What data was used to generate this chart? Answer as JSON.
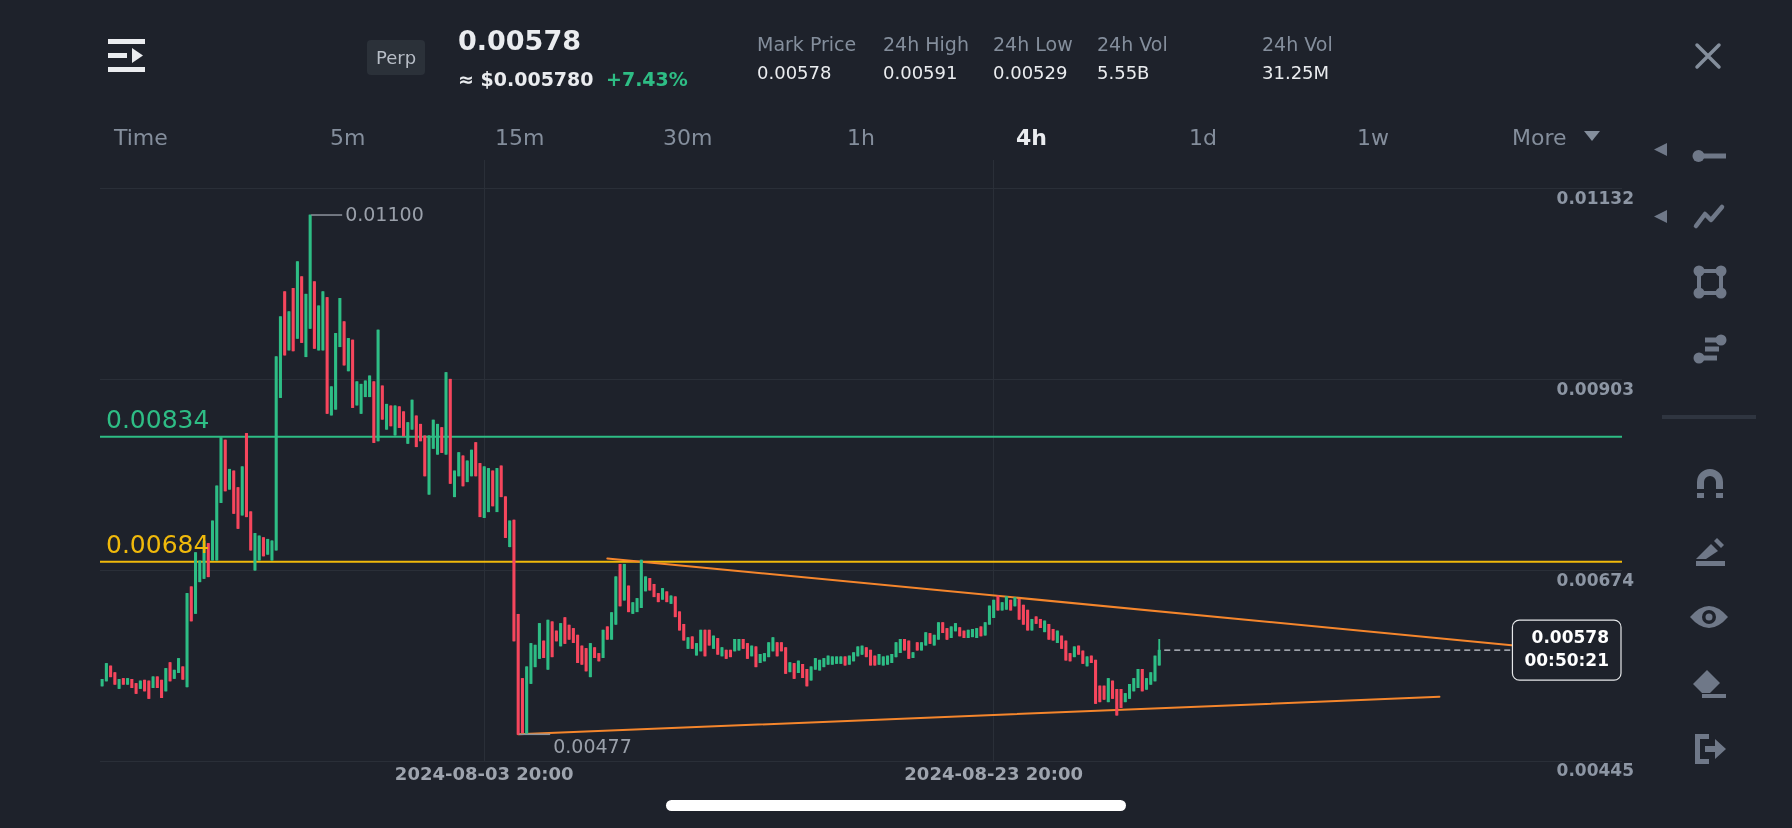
{
  "chart_data": {
    "type": "candlestick",
    "title": "0.00578",
    "subtitle": "≈ $0.005780",
    "x": [
      "2024-07-19T20:00",
      "2024-07-20T00:00",
      "2024-07-20T04:00",
      "2024-07-20T08:00",
      "2024-07-20T12:00",
      "2024-07-20T16:00",
      "2024-07-20T20:00",
      "2024-07-21T00:00",
      "2024-07-21T04:00",
      "2024-07-21T08:00",
      "2024-07-21T12:00",
      "2024-07-21T16:00",
      "2024-07-21T20:00",
      "2024-07-22T00:00",
      "2024-07-22T04:00",
      "2024-07-22T08:00",
      "2024-07-22T12:00",
      "2024-07-22T16:00",
      "2024-07-22T20:00",
      "2024-07-23T00:00",
      "2024-07-23T04:00",
      "2024-07-23T08:00",
      "2024-07-23T12:00",
      "2024-07-23T16:00",
      "2024-07-23T20:00",
      "2024-07-24T00:00",
      "2024-07-24T04:00",
      "2024-07-24T08:00",
      "2024-07-24T12:00",
      "2024-07-24T16:00",
      "2024-07-24T20:00",
      "2024-07-25T00:00",
      "2024-07-25T04:00",
      "2024-07-25T08:00",
      "2024-07-25T12:00",
      "2024-07-25T16:00",
      "2024-07-25T20:00",
      "2024-07-26T00:00",
      "2024-07-26T04:00",
      "2024-07-26T08:00",
      "2024-07-26T12:00",
      "2024-07-26T16:00",
      "2024-07-26T20:00",
      "2024-07-27T00:00",
      "2024-07-27T04:00",
      "2024-07-27T08:00",
      "2024-07-27T12:00",
      "2024-07-27T16:00",
      "2024-07-27T20:00",
      "2024-07-28T00:00",
      "2024-07-28T04:00",
      "2024-07-28T08:00",
      "2024-07-28T12:00",
      "2024-07-28T16:00",
      "2024-07-28T20:00",
      "2024-07-29T00:00",
      "2024-07-29T04:00",
      "2024-07-29T08:00",
      "2024-07-29T12:00",
      "2024-07-29T16:00",
      "2024-07-29T20:00",
      "2024-07-30T00:00",
      "2024-07-30T04:00",
      "2024-07-30T08:00",
      "2024-07-30T12:00",
      "2024-07-30T16:00",
      "2024-07-30T20:00",
      "2024-07-31T00:00",
      "2024-07-31T04:00",
      "2024-07-31T08:00",
      "2024-07-31T12:00",
      "2024-07-31T16:00",
      "2024-07-31T20:00",
      "2024-08-01T00:00",
      "2024-08-01T04:00",
      "2024-08-01T08:00",
      "2024-08-01T12:00",
      "2024-08-01T16:00",
      "2024-08-01T20:00",
      "2024-08-02T00:00",
      "2024-08-02T04:00",
      "2024-08-02T08:00",
      "2024-08-02T12:00",
      "2024-08-02T16:00",
      "2024-08-02T20:00",
      "2024-08-03T00:00",
      "2024-08-03T04:00",
      "2024-08-03T08:00",
      "2024-08-03T12:00",
      "2024-08-03T16:00",
      "2024-08-03T20:00",
      "2024-08-04T00:00",
      "2024-08-04T04:00",
      "2024-08-04T08:00",
      "2024-08-04T12:00",
      "2024-08-04T16:00",
      "2024-08-04T20:00",
      "2024-08-05T00:00",
      "2024-08-05T04:00",
      "2024-08-05T08:00",
      "2024-08-05T12:00",
      "2024-08-05T16:00",
      "2024-08-05T20:00",
      "2024-08-06T00:00",
      "2024-08-06T04:00",
      "2024-08-06T08:00",
      "2024-08-06T12:00",
      "2024-08-06T16:00",
      "2024-08-06T20:00",
      "2024-08-07T00:00",
      "2024-08-07T04:00",
      "2024-08-07T08:00",
      "2024-08-07T12:00",
      "2024-08-07T16:00",
      "2024-08-07T20:00",
      "2024-08-08T00:00",
      "2024-08-08T04:00",
      "2024-08-08T08:00",
      "2024-08-08T12:00",
      "2024-08-08T16:00",
      "2024-08-08T20:00",
      "2024-08-09T00:00",
      "2024-08-09T04:00",
      "2024-08-09T08:00",
      "2024-08-09T12:00",
      "2024-08-09T16:00",
      "2024-08-09T20:00",
      "2024-08-10T00:00",
      "2024-08-10T04:00",
      "2024-08-10T08:00",
      "2024-08-10T12:00",
      "2024-08-10T16:00",
      "2024-08-10T20:00",
      "2024-08-11T00:00",
      "2024-08-11T04:00",
      "2024-08-11T08:00",
      "2024-08-11T12:00",
      "2024-08-11T16:00",
      "2024-08-11T20:00",
      "2024-08-12T00:00",
      "2024-08-12T04:00",
      "2024-08-12T08:00",
      "2024-08-12T12:00",
      "2024-08-12T16:00",
      "2024-08-12T20:00",
      "2024-08-13T00:00",
      "2024-08-13T04:00",
      "2024-08-13T08:00",
      "2024-08-13T12:00",
      "2024-08-13T16:00",
      "2024-08-13T20:00",
      "2024-08-14T00:00",
      "2024-08-14T04:00",
      "2024-08-14T08:00",
      "2024-08-14T12:00",
      "2024-08-14T16:00",
      "2024-08-14T20:00",
      "2024-08-15T00:00",
      "2024-08-15T04:00",
      "2024-08-15T08:00",
      "2024-08-15T12:00",
      "2024-08-15T16:00",
      "2024-08-15T20:00",
      "2024-08-16T00:00",
      "2024-08-16T04:00",
      "2024-08-16T08:00",
      "2024-08-16T12:00",
      "2024-08-16T16:00",
      "2024-08-16T20:00",
      "2024-08-17T00:00",
      "2024-08-17T04:00",
      "2024-08-17T08:00",
      "2024-08-17T12:00",
      "2024-08-17T16:00",
      "2024-08-17T20:00",
      "2024-08-18T00:00",
      "2024-08-18T04:00",
      "2024-08-18T08:00",
      "2024-08-18T12:00",
      "2024-08-18T16:00",
      "2024-08-18T20:00",
      "2024-08-19T00:00",
      "2024-08-19T04:00",
      "2024-08-19T08:00",
      "2024-08-19T12:00",
      "2024-08-19T16:00",
      "2024-08-19T20:00",
      "2024-08-20T00:00",
      "2024-08-20T04:00",
      "2024-08-20T08:00",
      "2024-08-20T12:00",
      "2024-08-20T16:00",
      "2024-08-20T20:00",
      "2024-08-21T00:00",
      "2024-08-21T04:00",
      "2024-08-21T08:00",
      "2024-08-21T12:00",
      "2024-08-21T16:00",
      "2024-08-21T20:00",
      "2024-08-22T00:00",
      "2024-08-22T04:00",
      "2024-08-22T08:00",
      "2024-08-22T12:00",
      "2024-08-22T16:00",
      "2024-08-22T20:00",
      "2024-08-23T00:00",
      "2024-08-23T04:00",
      "2024-08-23T08:00",
      "2024-08-23T12:00",
      "2024-08-23T16:00",
      "2024-08-23T20:00",
      "2024-08-24T00:00",
      "2024-08-24T04:00",
      "2024-08-24T08:00",
      "2024-08-24T12:00",
      "2024-08-24T16:00",
      "2024-08-24T20:00",
      "2024-08-25T00:00",
      "2024-08-25T04:00",
      "2024-08-25T08:00",
      "2024-08-25T12:00",
      "2024-08-25T16:00",
      "2024-08-25T20:00",
      "2024-08-26T00:00",
      "2024-08-26T04:00",
      "2024-08-26T08:00",
      "2024-08-26T12:00",
      "2024-08-26T16:00",
      "2024-08-26T20:00",
      "2024-08-27T00:00",
      "2024-08-27T04:00",
      "2024-08-27T08:00",
      "2024-08-27T12:00",
      "2024-08-27T16:00",
      "2024-08-27T20:00",
      "2024-08-28T00:00",
      "2024-08-28T04:00",
      "2024-08-28T08:00",
      "2024-08-28T12:00",
      "2024-08-28T16:00",
      "2024-08-28T20:00",
      "2024-08-29T00:00",
      "2024-08-29T04:00",
      "2024-08-29T08:00",
      "2024-08-29T12:00",
      "2024-08-29T16:00",
      "2024-08-29T20:00",
      "2024-08-30T00:00",
      "2024-08-30T04:00",
      "2024-08-30T08:00"
    ],
    "ohlc": [
      [
        0.00535,
        0.00543,
        0.00535,
        0.00543
      ],
      [
        0.00541,
        0.00562,
        0.00541,
        0.00562
      ],
      [
        0.00559,
        0.00559,
        0.00546,
        0.00546
      ],
      [
        0.00551,
        0.00551,
        0.00537,
        0.00537
      ],
      [
        0.00532,
        0.00543,
        0.00532,
        0.00543
      ],
      [
        0.00544,
        0.00544,
        0.00537,
        0.00537
      ],
      [
        0.00537,
        0.00544,
        0.00537,
        0.00544
      ],
      [
        0.00543,
        0.00543,
        0.00533,
        0.00533
      ],
      [
        0.00538,
        0.00538,
        0.00526,
        0.00526
      ],
      [
        0.00532,
        0.00541,
        0.00532,
        0.00541
      ],
      [
        0.00542,
        0.00542,
        0.00529,
        0.00529
      ],
      [
        0.00541,
        0.00541,
        0.0052,
        0.0052
      ],
      [
        0.00533,
        0.00546,
        0.00533,
        0.00546
      ],
      [
        0.00546,
        0.00546,
        0.00533,
        0.00533
      ],
      [
        0.00542,
        0.00542,
        0.00521,
        0.00521
      ],
      [
        0.00529,
        0.00556,
        0.00529,
        0.00556
      ],
      [
        0.00563,
        0.00563,
        0.00541,
        0.00541
      ],
      [
        0.00544,
        0.00554,
        0.00544,
        0.00554
      ],
      [
        0.00551,
        0.00568,
        0.00551,
        0.00568
      ],
      [
        0.00558,
        0.00558,
        0.00543,
        0.00543
      ],
      [
        0.00534,
        0.00646,
        0.00534,
        0.00646
      ],
      [
        0.00654,
        0.00654,
        0.00613,
        0.00613
      ],
      [
        0.00622,
        0.00695,
        0.00622,
        0.00695
      ],
      [
        0.0066,
        0.00685,
        0.0066,
        0.00685
      ],
      [
        0.00664,
        0.00709,
        0.00664,
        0.00709
      ],
      [
        0.00706,
        0.00706,
        0.00666,
        0.00666
      ],
      [
        0.00686,
        0.00733,
        0.00686,
        0.00733
      ],
      [
        0.00686,
        0.00775,
        0.00686,
        0.00775
      ],
      [
        0.00755,
        0.00833,
        0.00755,
        0.00833
      ],
      [
        0.0083,
        0.0083,
        0.00769,
        0.00769
      ],
      [
        0.00771,
        0.00795,
        0.00771,
        0.00795
      ],
      [
        0.00793,
        0.00793,
        0.00742,
        0.00742
      ],
      [
        0.00773,
        0.00773,
        0.00724,
        0.00724
      ],
      [
        0.0074,
        0.00798,
        0.0074,
        0.00798
      ],
      [
        0.00838,
        0.00838,
        0.00738,
        0.00738
      ],
      [
        0.00744,
        0.00744,
        0.00698,
        0.00698
      ],
      [
        0.00674,
        0.00718,
        0.00674,
        0.00718
      ],
      [
        0.00686,
        0.00715,
        0.00686,
        0.00715
      ],
      [
        0.00713,
        0.00713,
        0.00691,
        0.00691
      ],
      [
        0.00693,
        0.00711,
        0.00693,
        0.00711
      ],
      [
        0.00686,
        0.00709,
        0.00686,
        0.00709
      ],
      [
        0.00698,
        0.0093,
        0.00698,
        0.0093
      ],
      [
        0.00881,
        0.00978,
        0.00881,
        0.00978
      ],
      [
        0.01008,
        0.01008,
        0.00932,
        0.00932
      ],
      [
        0.00938,
        0.00984,
        0.00938,
        0.00984
      ],
      [
        0.01012,
        0.01012,
        0.00937,
        0.00937
      ],
      [
        0.00952,
        0.01044,
        0.00952,
        0.01044
      ],
      [
        0.01026,
        0.01026,
        0.00947,
        0.00947
      ],
      [
        0.0093,
        0.01005,
        0.0093,
        0.01005
      ],
      [
        0.00964,
        0.011,
        0.00964,
        0.011
      ],
      [
        0.0102,
        0.0102,
        0.0094,
        0.0094
      ],
      [
        0.00938,
        0.00991,
        0.00938,
        0.00991
      ],
      [
        0.00938,
        0.01008,
        0.00938,
        0.01008
      ],
      [
        0.01001,
        0.01001,
        0.00862,
        0.00862
      ],
      [
        0.0086,
        0.00894,
        0.0086,
        0.00894
      ],
      [
        0.00867,
        0.00958,
        0.00867,
        0.00958
      ],
      [
        0.00942,
        0.01,
        0.00942,
        0.01
      ],
      [
        0.00972,
        0.00972,
        0.0092,
        0.0092
      ],
      [
        0.00913,
        0.00952,
        0.00913,
        0.00952
      ],
      [
        0.0095,
        0.0095,
        0.00869,
        0.00869
      ],
      [
        0.00872,
        0.009,
        0.00872,
        0.009
      ],
      [
        0.00862,
        0.00897,
        0.00862,
        0.00897
      ],
      [
        0.00882,
        0.00901,
        0.00882,
        0.00901
      ],
      [
        0.00882,
        0.00907,
        0.00882,
        0.00907
      ],
      [
        0.009,
        0.009,
        0.00827,
        0.00827
      ],
      [
        0.00829,
        0.00962,
        0.00829,
        0.00962
      ],
      [
        0.00895,
        0.00895,
        0.00855,
        0.00855
      ],
      [
        0.00843,
        0.00873,
        0.00843,
        0.00873
      ],
      [
        0.00871,
        0.00871,
        0.00847,
        0.00847
      ],
      [
        0.00836,
        0.00871,
        0.00836,
        0.00871
      ],
      [
        0.0087,
        0.0087,
        0.00845,
        0.00845
      ],
      [
        0.00864,
        0.00864,
        0.00835,
        0.00835
      ],
      [
        0.00826,
        0.00851,
        0.00826,
        0.00851
      ],
      [
        0.00843,
        0.00878,
        0.00843,
        0.00878
      ],
      [
        0.00859,
        0.00859,
        0.00822,
        0.00822
      ],
      [
        0.00849,
        0.00849,
        0.00829,
        0.00829
      ],
      [
        0.00835,
        0.00835,
        0.00787,
        0.00787
      ],
      [
        0.00765,
        0.00835,
        0.00765,
        0.00835
      ],
      [
        0.0082,
        0.00854,
        0.0082,
        0.00854
      ],
      [
        0.00813,
        0.00849,
        0.00813,
        0.00849
      ],
      [
        0.00845,
        0.00845,
        0.00815,
        0.00815
      ],
      [
        0.00813,
        0.00911,
        0.00813,
        0.00911
      ],
      [
        0.00903,
        0.00903,
        0.00778,
        0.00778
      ],
      [
        0.00762,
        0.00793,
        0.00762,
        0.00793
      ],
      [
        0.00787,
        0.00815,
        0.00787,
        0.00815
      ],
      [
        0.00811,
        0.00811,
        0.00775,
        0.00775
      ],
      [
        0.0078,
        0.00805,
        0.0078,
        0.00805
      ],
      [
        0.00787,
        0.00818,
        0.00787,
        0.00818
      ],
      [
        0.00827,
        0.00827,
        0.00787,
        0.00787
      ],
      [
        0.00802,
        0.00802,
        0.00738,
        0.00738
      ],
      [
        0.00737,
        0.00798,
        0.00737,
        0.00798
      ],
      [
        0.00744,
        0.00796,
        0.00744,
        0.00796
      ],
      [
        0.00793,
        0.00793,
        0.00751,
        0.00751
      ],
      [
        0.00744,
        0.00796,
        0.00744,
        0.00796
      ],
      [
        0.00799,
        0.00799,
        0.00762,
        0.00762
      ],
      [
        0.00762,
        0.00762,
        0.00713,
        0.00713
      ],
      [
        0.00702,
        0.00733,
        0.00702,
        0.00733
      ],
      [
        0.00734,
        0.00734,
        0.00589,
        0.00589
      ],
      [
        0.00621,
        0.00621,
        0.00477,
        0.00477
      ],
      [
        0.00544,
        0.00544,
        0.00479,
        0.00479
      ],
      [
        0.00478,
        0.00558,
        0.00478,
        0.00558
      ],
      [
        0.00538,
        0.00586,
        0.00538,
        0.00586
      ],
      [
        0.00558,
        0.00584,
        0.00558,
        0.00584
      ],
      [
        0.00568,
        0.0061,
        0.00568,
        0.0061
      ],
      [
        0.00589,
        0.00589,
        0.00569,
        0.00569
      ],
      [
        0.00555,
        0.00614,
        0.00555,
        0.00614
      ],
      [
        0.00612,
        0.00612,
        0.0057,
        0.0057
      ],
      [
        0.00601,
        0.00601,
        0.00589,
        0.00589
      ],
      [
        0.00583,
        0.0061,
        0.00583,
        0.0061
      ],
      [
        0.00617,
        0.00617,
        0.00586,
        0.00586
      ],
      [
        0.00608,
        0.00608,
        0.00591,
        0.00591
      ],
      [
        0.00604,
        0.00604,
        0.00587,
        0.00587
      ],
      [
        0.00596,
        0.00596,
        0.00563,
        0.00563
      ],
      [
        0.00583,
        0.00583,
        0.00561,
        0.00561
      ],
      [
        0.0058,
        0.0058,
        0.00553,
        0.00553
      ],
      [
        0.00546,
        0.00586,
        0.00546,
        0.00586
      ],
      [
        0.00581,
        0.00581,
        0.00569,
        0.00569
      ],
      [
        0.00574,
        0.00574,
        0.00565,
        0.00565
      ],
      [
        0.00569,
        0.00602,
        0.00569,
        0.00602
      ],
      [
        0.00606,
        0.00606,
        0.00591,
        0.00591
      ],
      [
        0.00591,
        0.00623,
        0.00591,
        0.00623
      ],
      [
        0.00609,
        0.00666,
        0.00609,
        0.00666
      ],
      [
        0.00681,
        0.00681,
        0.00631,
        0.00631
      ],
      [
        0.00638,
        0.00681,
        0.00638,
        0.00681
      ],
      [
        0.00655,
        0.00655,
        0.00624,
        0.00624
      ],
      [
        0.00622,
        0.00635,
        0.00622,
        0.00635
      ],
      [
        0.00624,
        0.0064,
        0.00624,
        0.0064
      ],
      [
        0.00629,
        0.00686,
        0.00629,
        0.00686
      ],
      [
        0.00649,
        0.00666,
        0.00649,
        0.00666
      ],
      [
        0.00664,
        0.00664,
        0.0065,
        0.0065
      ],
      [
        0.00657,
        0.00657,
        0.00642,
        0.00642
      ],
      [
        0.00646,
        0.00646,
        0.00636,
        0.00636
      ],
      [
        0.00639,
        0.00652,
        0.00639,
        0.00652
      ],
      [
        0.00648,
        0.00648,
        0.00636,
        0.00636
      ],
      [
        0.00634,
        0.00643,
        0.00634,
        0.00643
      ],
      [
        0.00642,
        0.00642,
        0.00618,
        0.00618
      ],
      [
        0.00624,
        0.00624,
        0.00602,
        0.00602
      ],
      [
        0.00609,
        0.00609,
        0.0059,
        0.0059
      ],
      [
        0.0058,
        0.00593,
        0.0058,
        0.00593
      ],
      [
        0.00594,
        0.00594,
        0.0058,
        0.0058
      ],
      [
        0.00572,
        0.00586,
        0.00572,
        0.00586
      ],
      [
        0.00577,
        0.00602,
        0.00577,
        0.00602
      ],
      [
        0.00602,
        0.00602,
        0.00571,
        0.00571
      ],
      [
        0.00602,
        0.00602,
        0.00584,
        0.00584
      ],
      [
        0.0058,
        0.00595,
        0.0058,
        0.00595
      ],
      [
        0.00592,
        0.00592,
        0.00573,
        0.00573
      ],
      [
        0.00571,
        0.00581,
        0.00571,
        0.00581
      ],
      [
        0.00578,
        0.00578,
        0.00568,
        0.00568
      ],
      [
        0.00578,
        0.00578,
        0.0057,
        0.0057
      ],
      [
        0.00577,
        0.00591,
        0.00577,
        0.00591
      ],
      [
        0.00578,
        0.00591,
        0.00578,
        0.00591
      ],
      [
        0.00591,
        0.00591,
        0.0058,
        0.0058
      ],
      [
        0.00586,
        0.00586,
        0.00568,
        0.00568
      ],
      [
        0.00571,
        0.00583,
        0.00571,
        0.00583
      ],
      [
        0.00582,
        0.00582,
        0.00558,
        0.00558
      ],
      [
        0.00563,
        0.00573,
        0.00563,
        0.00573
      ],
      [
        0.00565,
        0.00574,
        0.00565,
        0.00574
      ],
      [
        0.0057,
        0.00587,
        0.0057,
        0.00587
      ],
      [
        0.00577,
        0.00593,
        0.00577,
        0.00593
      ],
      [
        0.00587,
        0.00587,
        0.00571,
        0.00571
      ],
      [
        0.00587,
        0.00587,
        0.00577,
        0.00577
      ],
      [
        0.00581,
        0.00581,
        0.0055,
        0.0055
      ],
      [
        0.00552,
        0.00563,
        0.00552,
        0.00563
      ],
      [
        0.00562,
        0.00562,
        0.00544,
        0.00544
      ],
      [
        0.00551,
        0.00565,
        0.00551,
        0.00565
      ],
      [
        0.00561,
        0.00561,
        0.00545,
        0.00545
      ],
      [
        0.00555,
        0.00555,
        0.00535,
        0.00535
      ],
      [
        0.00542,
        0.00558,
        0.00542,
        0.00558
      ],
      [
        0.00555,
        0.00568,
        0.00555,
        0.00568
      ],
      [
        0.00554,
        0.00566,
        0.00554,
        0.00566
      ],
      [
        0.00558,
        0.00568,
        0.00558,
        0.00568
      ],
      [
        0.00561,
        0.00571,
        0.00561,
        0.00571
      ],
      [
        0.00561,
        0.0057,
        0.00561,
        0.0057
      ],
      [
        0.00562,
        0.0057,
        0.00562,
        0.0057
      ],
      [
        0.00562,
        0.0057,
        0.00562,
        0.0057
      ],
      [
        0.0057,
        0.0057,
        0.0056,
        0.0056
      ],
      [
        0.00561,
        0.00571,
        0.00561,
        0.00571
      ],
      [
        0.00565,
        0.00575,
        0.00565,
        0.00575
      ],
      [
        0.00571,
        0.00582,
        0.00571,
        0.00582
      ],
      [
        0.00573,
        0.00583,
        0.00573,
        0.00583
      ],
      [
        0.00581,
        0.00581,
        0.0057,
        0.0057
      ],
      [
        0.00578,
        0.00578,
        0.0056,
        0.0056
      ],
      [
        0.00571,
        0.00571,
        0.0056,
        0.0056
      ],
      [
        0.00561,
        0.00573,
        0.00561,
        0.00573
      ],
      [
        0.0056,
        0.0057,
        0.0056,
        0.0057
      ],
      [
        0.00561,
        0.00571,
        0.00561,
        0.00571
      ],
      [
        0.00563,
        0.00573,
        0.00563,
        0.00573
      ],
      [
        0.0057,
        0.00587,
        0.0057,
        0.00587
      ],
      [
        0.00575,
        0.00591,
        0.00575,
        0.00591
      ],
      [
        0.00591,
        0.00591,
        0.00578,
        0.00578
      ],
      [
        0.00589,
        0.00589,
        0.00568,
        0.00568
      ],
      [
        0.00569,
        0.00575,
        0.00569,
        0.00575
      ],
      [
        0.00587,
        0.00587,
        0.00578,
        0.00578
      ],
      [
        0.00578,
        0.00587,
        0.00578,
        0.00587
      ],
      [
        0.00584,
        0.00599,
        0.00584,
        0.00599
      ],
      [
        0.00598,
        0.00598,
        0.00586,
        0.00586
      ],
      [
        0.00584,
        0.00596,
        0.00584,
        0.00596
      ],
      [
        0.00591,
        0.00611,
        0.00591,
        0.00611
      ],
      [
        0.00611,
        0.00611,
        0.00599,
        0.00599
      ],
      [
        0.00604,
        0.00604,
        0.00591,
        0.00591
      ],
      [
        0.00593,
        0.00606,
        0.00593,
        0.00606
      ],
      [
        0.00601,
        0.0061,
        0.00601,
        0.0061
      ],
      [
        0.00605,
        0.00605,
        0.00595,
        0.00595
      ],
      [
        0.00601,
        0.00601,
        0.00593,
        0.00593
      ],
      [
        0.00593,
        0.00602,
        0.00593,
        0.00602
      ],
      [
        0.00594,
        0.00603,
        0.00594,
        0.00603
      ],
      [
        0.00593,
        0.00604,
        0.00593,
        0.00604
      ],
      [
        0.00606,
        0.00606,
        0.00595,
        0.00595
      ],
      [
        0.00596,
        0.00611,
        0.00596,
        0.00611
      ],
      [
        0.00609,
        0.00631,
        0.00609,
        0.00631
      ],
      [
        0.00617,
        0.00638,
        0.00617,
        0.00638
      ],
      [
        0.00643,
        0.00643,
        0.00626,
        0.00626
      ],
      [
        0.00626,
        0.00635,
        0.00626,
        0.00635
      ],
      [
        0.00627,
        0.00642,
        0.00627,
        0.00642
      ],
      [
        0.00638,
        0.00638,
        0.00626,
        0.00626
      ],
      [
        0.00631,
        0.00641,
        0.00631,
        0.00641
      ],
      [
        0.00639,
        0.00639,
        0.00615,
        0.00615
      ],
      [
        0.00632,
        0.00632,
        0.00609,
        0.00609
      ],
      [
        0.00626,
        0.00626,
        0.00602,
        0.00602
      ],
      [
        0.00602,
        0.00615,
        0.00602,
        0.00615
      ],
      [
        0.00618,
        0.00618,
        0.0061,
        0.0061
      ],
      [
        0.00615,
        0.00615,
        0.00605,
        0.00605
      ],
      [
        0.006,
        0.00613,
        0.006,
        0.00613
      ],
      [
        0.00609,
        0.00609,
        0.00591,
        0.00591
      ],
      [
        0.00603,
        0.00603,
        0.0059,
        0.0059
      ],
      [
        0.00587,
        0.00601,
        0.00587,
        0.00601
      ],
      [
        0.00595,
        0.00595,
        0.0058,
        0.0058
      ],
      [
        0.00589,
        0.00589,
        0.00566,
        0.00566
      ],
      [
        0.00574,
        0.00574,
        0.00565,
        0.00565
      ],
      [
        0.0057,
        0.00582,
        0.0057,
        0.00582
      ],
      [
        0.00583,
        0.00583,
        0.00573,
        0.00573
      ],
      [
        0.00577,
        0.00577,
        0.00562,
        0.00562
      ],
      [
        0.00559,
        0.0057,
        0.00559,
        0.0057
      ],
      [
        0.00571,
        0.00571,
        0.00563,
        0.00563
      ],
      [
        0.00566,
        0.00566,
        0.00514,
        0.00514
      ],
      [
        0.00535,
        0.00535,
        0.00516,
        0.00516
      ],
      [
        0.00535,
        0.00535,
        0.00519,
        0.00519
      ],
      [
        0.00516,
        0.00544,
        0.00516,
        0.00544
      ],
      [
        0.00541,
        0.00541,
        0.0052,
        0.0052
      ],
      [
        0.00531,
        0.00531,
        0.005,
        0.005
      ],
      [
        0.00531,
        0.00531,
        0.00509,
        0.00509
      ],
      [
        0.00516,
        0.00526,
        0.00516,
        0.00526
      ],
      [
        0.0052,
        0.00537,
        0.0052,
        0.00537
      ],
      [
        0.00529,
        0.00544,
        0.00529,
        0.00544
      ],
      [
        0.00533,
        0.00555,
        0.00533,
        0.00555
      ],
      [
        0.00555,
        0.00555,
        0.00529,
        0.00529
      ],
      [
        0.00531,
        0.00544,
        0.00531,
        0.00544
      ],
      [
        0.00537,
        0.00551,
        0.00537,
        0.00551
      ],
      [
        0.00541,
        0.00571,
        0.00541,
        0.00571
      ],
      [
        0.0056,
        0.00591,
        0.0056,
        0.00578
      ]
    ],
    "colors": [
      "#2ebd85",
      "#2ebd85",
      "#f6465d",
      "#f6465d",
      "#2ebd85",
      "#f6465d",
      "#2ebd85",
      "#f6465d",
      "#f6465d",
      "#2ebd85",
      "#f6465d",
      "#f6465d",
      "#2ebd85",
      "#f6465d",
      "#f6465d",
      "#2ebd85",
      "#f6465d",
      "#2ebd85",
      "#2ebd85",
      "#f6465d",
      "#2ebd85",
      "#f6465d",
      "#2ebd85",
      "#2ebd85",
      "#2ebd85",
      "#f6465d",
      "#2ebd85",
      "#2ebd85",
      "#2ebd85",
      "#f6465d",
      "#2ebd85",
      "#f6465d",
      "#f6465d",
      "#2ebd85",
      "#f6465d",
      "#f6465d",
      "#2ebd85",
      "#2ebd85",
      "#f6465d",
      "#2ebd85",
      "#2ebd85",
      "#2ebd85",
      "#2ebd85",
      "#f6465d",
      "#2ebd85",
      "#f6465d",
      "#2ebd85",
      "#f6465d",
      "#2ebd85",
      "#2ebd85",
      "#f6465d",
      "#2ebd85",
      "#2ebd85",
      "#f6465d",
      "#2ebd85",
      "#2ebd85",
      "#2ebd85",
      "#f6465d",
      "#2ebd85",
      "#f6465d",
      "#2ebd85",
      "#2ebd85",
      "#2ebd85",
      "#2ebd85",
      "#f6465d",
      "#2ebd85",
      "#f6465d",
      "#2ebd85",
      "#f6465d",
      "#2ebd85",
      "#f6465d",
      "#f6465d",
      "#2ebd85",
      "#2ebd85",
      "#f6465d",
      "#f6465d",
      "#f6465d",
      "#2ebd85",
      "#2ebd85",
      "#2ebd85",
      "#f6465d",
      "#2ebd85",
      "#f6465d",
      "#2ebd85",
      "#2ebd85",
      "#f6465d",
      "#2ebd85",
      "#2ebd85",
      "#f6465d",
      "#f6465d",
      "#2ebd85",
      "#2ebd85",
      "#f6465d",
      "#2ebd85",
      "#f6465d",
      "#f6465d",
      "#2ebd85",
      "#f6465d",
      "#f6465d",
      "#f6465d",
      "#2ebd85",
      "#2ebd85",
      "#2ebd85",
      "#2ebd85",
      "#f6465d",
      "#2ebd85",
      "#f6465d",
      "#f6465d",
      "#2ebd85",
      "#f6465d",
      "#f6465d",
      "#f6465d",
      "#f6465d",
      "#f6465d",
      "#f6465d",
      "#2ebd85",
      "#f6465d",
      "#f6465d",
      "#2ebd85",
      "#f6465d",
      "#2ebd85",
      "#2ebd85",
      "#f6465d",
      "#2ebd85",
      "#f6465d",
      "#2ebd85",
      "#2ebd85",
      "#2ebd85",
      "#2ebd85",
      "#f6465d",
      "#f6465d",
      "#f6465d",
      "#2ebd85",
      "#f6465d",
      "#2ebd85",
      "#f6465d",
      "#f6465d",
      "#f6465d",
      "#2ebd85",
      "#f6465d",
      "#2ebd85",
      "#2ebd85",
      "#f6465d",
      "#f6465d",
      "#2ebd85",
      "#f6465d",
      "#2ebd85",
      "#f6465d",
      "#f6465d",
      "#2ebd85",
      "#2ebd85",
      "#f6465d",
      "#f6465d",
      "#2ebd85",
      "#f6465d",
      "#2ebd85",
      "#2ebd85",
      "#2ebd85",
      "#2ebd85",
      "#f6465d",
      "#f6465d",
      "#f6465d",
      "#2ebd85",
      "#f6465d",
      "#2ebd85",
      "#f6465d",
      "#f6465d",
      "#2ebd85",
      "#2ebd85",
      "#2ebd85",
      "#2ebd85",
      "#2ebd85",
      "#2ebd85",
      "#2ebd85",
      "#2ebd85",
      "#f6465d",
      "#2ebd85",
      "#2ebd85",
      "#2ebd85",
      "#2ebd85",
      "#f6465d",
      "#f6465d",
      "#f6465d",
      "#2ebd85",
      "#2ebd85",
      "#2ebd85",
      "#2ebd85",
      "#2ebd85",
      "#2ebd85",
      "#f6465d",
      "#f6465d",
      "#2ebd85",
      "#f6465d",
      "#2ebd85",
      "#2ebd85",
      "#f6465d",
      "#2ebd85",
      "#2ebd85",
      "#f6465d",
      "#f6465d",
      "#2ebd85",
      "#2ebd85",
      "#f6465d",
      "#f6465d",
      "#2ebd85",
      "#2ebd85",
      "#2ebd85",
      "#f6465d",
      "#2ebd85",
      "#2ebd85",
      "#2ebd85",
      "#f6465d",
      "#2ebd85",
      "#2ebd85",
      "#f6465d",
      "#2ebd85",
      "#f6465d",
      "#f6465d",
      "#f6465d",
      "#2ebd85",
      "#f6465d",
      "#f6465d",
      "#2ebd85",
      "#f6465d",
      "#f6465d",
      "#2ebd85",
      "#f6465d",
      "#f6465d",
      "#f6465d",
      "#2ebd85",
      "#f6465d",
      "#f6465d",
      "#2ebd85",
      "#f6465d",
      "#f6465d",
      "#f6465d",
      "#f6465d",
      "#2ebd85",
      "#f6465d",
      "#f6465d",
      "#f6465d",
      "#2ebd85",
      "#2ebd85",
      "#2ebd85",
      "#2ebd85",
      "#f6465d",
      "#2ebd85",
      "#2ebd85",
      "#2ebd85",
      "#2ebd85"
    ],
    "series": [
      {
        "type": "line",
        "x": [
          "2024-08-08T16:00",
          "2024-09-13T04:00"
        ],
        "values": [
          0.00688,
          0.00584
        ],
        "color": "#f5862c"
      },
      {
        "type": "line",
        "x": [
          "2024-08-05T04:00",
          "2024-09-10T08:00"
        ],
        "values": [
          0.00477,
          0.00522
        ],
        "color": "#f5862c"
      }
    ],
    "ref_lines": [
      {
        "axis": "y",
        "value": 0.00834,
        "label": "0.00834",
        "color": "#2ebd85"
      },
      {
        "axis": "y",
        "value": 0.00684,
        "label": "0.00684",
        "color": "#f0b90b"
      },
      {
        "axis": "y",
        "value": 0.00578,
        "label": "0.00578\n00:50:21",
        "color": "#c9ced6",
        "line_style": "dashed"
      }
    ],
    "annotations": [
      "+7.43%",
      "Perp",
      "Mark Price",
      "0.00578",
      "24h High",
      "0.00591",
      "24h Low",
      "0.00529",
      "24h Vol",
      "5.55B",
      "24h Vol",
      "31.25M",
      "Time",
      "5m",
      "15m",
      "30m",
      "1h",
      "4h",
      "1d",
      "1w",
      "More",
      {
        "text": "0.01100",
        "x": "2024-07-28T00:00",
        "y": 0.011
      },
      {
        "text": "0.00477",
        "x": "2024-08-05T04:00",
        "y": 0.00477
      }
    ],
    "xlim": [
      "2024-07-19T18:00",
      "2024-09-17T12:00"
    ],
    "xticks": [
      {
        "value": "2024-08-03T20:00",
        "label": "2024-08-03 20:00"
      },
      {
        "value": "2024-08-23T20:00",
        "label": "2024-08-23 20:00"
      }
    ],
    "ylim": [
      0.00445,
      0.01166
    ],
    "yticks": [
      0.00445,
      0.00674,
      0.00903,
      0.01132
    ],
    "grid": true
  }
}
